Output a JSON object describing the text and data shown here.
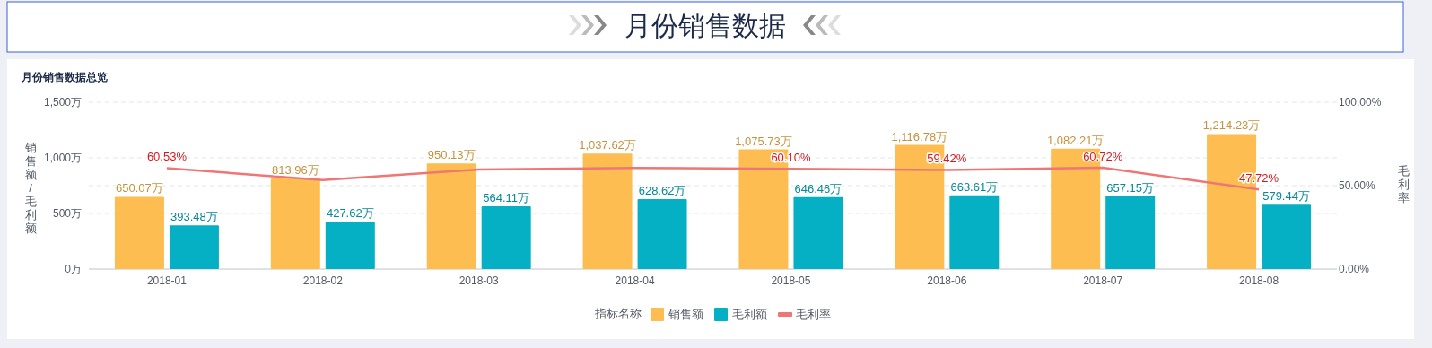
{
  "chart_data": {
    "type": "bar",
    "title": "月份销售数据",
    "subtitle": "月份销售数据总览",
    "ylabel": "销售额/毛利额",
    "y2label": "毛利率",
    "legend_title": "指标名称",
    "legend": "bottom",
    "grid": true,
    "categories": [
      "2018-01",
      "2018-02",
      "2018-03",
      "2018-04",
      "2018-05",
      "2018-06",
      "2018-07",
      "2018-08"
    ],
    "ylim": [
      0,
      1500
    ],
    "yticks": [
      {
        "value": 0,
        "label": "0万"
      },
      {
        "value": 500,
        "label": "500万"
      },
      {
        "value": 1000,
        "label": "1,000万"
      },
      {
        "value": 1500,
        "label": "1,500万"
      }
    ],
    "y2lim": [
      0,
      100
    ],
    "y2ticks": [
      {
        "value": 0,
        "label": "0.00%"
      },
      {
        "value": 50,
        "label": "50.00%"
      },
      {
        "value": 100,
        "label": "100.00%"
      }
    ],
    "series": [
      {
        "name": "销售额",
        "color": "#fdbd50",
        "values": [
          650.07,
          813.96,
          950.13,
          1037.62,
          1075.73,
          1116.78,
          1082.21,
          1214.23
        ],
        "value_labels": [
          "650.07万",
          "813.96万",
          "950.13万",
          "1,037.62万",
          "1,075.73万",
          "1,116.78万",
          "1,082.21万",
          "1,214.23万"
        ]
      },
      {
        "name": "毛利额",
        "color": "#06b0c4",
        "values": [
          393.48,
          427.62,
          564.11,
          628.62,
          646.46,
          663.61,
          657.15,
          579.44
        ],
        "value_labels": [
          "393.48万",
          "427.62万",
          "564.11万",
          "628.62万",
          "646.46万",
          "663.61万",
          "657.15万",
          "579.44万"
        ]
      },
      {
        "name": "毛利率",
        "type": "line",
        "axis": "y2",
        "color": "#f07575",
        "marker": "none",
        "values": [
          60.53,
          53.3,
          59.7,
          60.6,
          60.1,
          59.42,
          60.72,
          47.72
        ],
        "value_labels": [
          "60.53%",
          null,
          null,
          null,
          "60.10%",
          "59.42%",
          "60.72%",
          "47.72%"
        ]
      }
    ]
  }
}
